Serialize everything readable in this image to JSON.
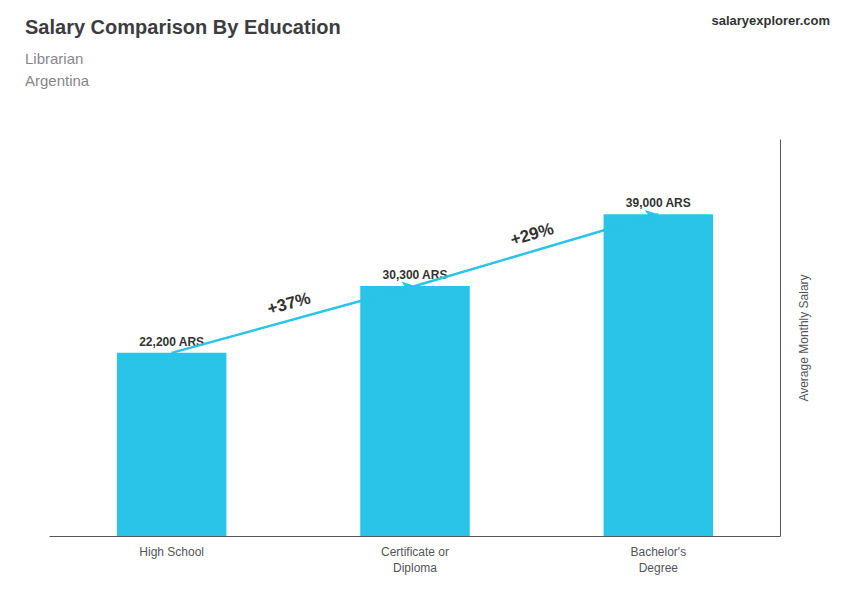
{
  "chart_data": {
    "type": "bar",
    "title": "Salary Comparison By Education",
    "subtitle": [
      "Librarian",
      "Argentina"
    ],
    "ylabel": "Average Monthly Salary",
    "categories": [
      "High School",
      "Certificate or\nDiploma",
      "Bachelor's\nDegree"
    ],
    "values": [
      22200,
      30300,
      39000
    ],
    "value_labels": [
      "22,200 ARS",
      "30,300 ARS",
      "39,000 ARS"
    ],
    "data_labels": true,
    "color": "#29C4E8",
    "ylim": [
      0,
      48000
    ],
    "tick_labels": "x",
    "grid": false,
    "annotations": [
      {
        "text": "+37%",
        "from": "High School",
        "to": "Certificate or\nDiploma"
      },
      {
        "text": "+29%",
        "from": "Certificate or\nDiploma",
        "to": "Bachelor's\nDegree"
      },
      {
        "text": "salaryexplorer.com"
      }
    ]
  }
}
